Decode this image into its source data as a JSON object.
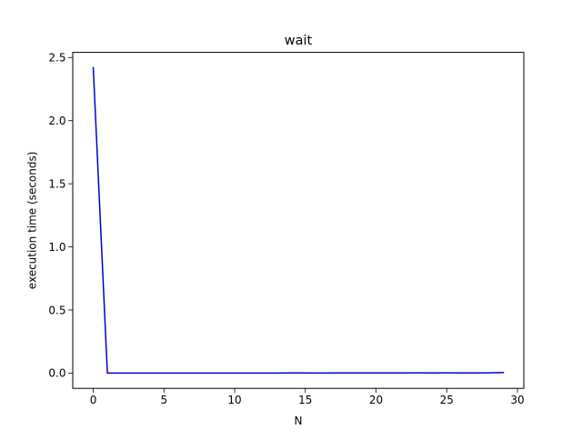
{
  "chart_data": {
    "type": "line",
    "title": "wait",
    "xlabel": "N",
    "ylabel": "execution time (seconds)",
    "xlim": [
      -1.45,
      30.45
    ],
    "ylim": [
      -0.121,
      2.541
    ],
    "xticks": [
      0,
      5,
      10,
      15,
      20,
      25,
      30
    ],
    "yticks": [
      0.0,
      0.5,
      1.0,
      1.5,
      2.0,
      2.5
    ],
    "xtick_labels": [
      "0",
      "5",
      "10",
      "15",
      "20",
      "25",
      "30"
    ],
    "ytick_labels": [
      "0.0",
      "0.5",
      "1.0",
      "1.5",
      "2.0",
      "2.5"
    ],
    "grid": false,
    "legend": "none",
    "series": [
      {
        "color": "#0000cc",
        "x": [
          0,
          1,
          2,
          3,
          4,
          5,
          6,
          7,
          8,
          9,
          10,
          11,
          12,
          13,
          14,
          15,
          16,
          17,
          18,
          19,
          20,
          21,
          22,
          23,
          24,
          25,
          26,
          27,
          28,
          29
        ],
        "y": [
          2.42,
          0.0,
          0.0,
          0.0,
          0.0,
          0.0,
          0.0,
          0.0,
          0.0,
          0.0,
          0.0,
          0.0005,
          0.0005,
          0.0005,
          0.001,
          0.001,
          0.0005,
          0.001,
          0.001,
          0.001,
          0.0015,
          0.001,
          0.0015,
          0.002,
          0.001,
          0.002,
          0.0015,
          0.001,
          0.002,
          0.005
        ]
      }
    ]
  }
}
